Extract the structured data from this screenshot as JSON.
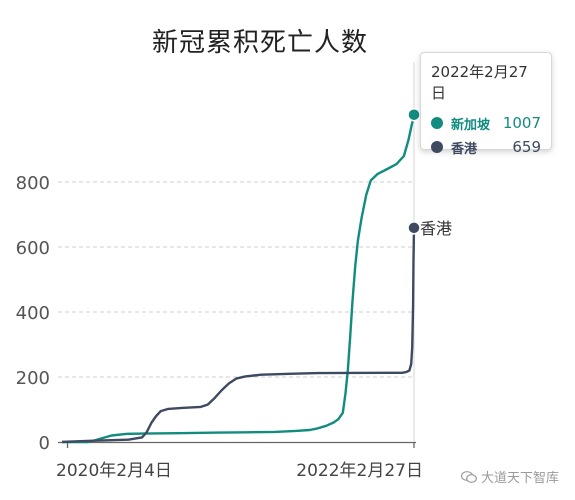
{
  "title": "新冠累积死亡人数",
  "colors": {
    "singapore": "#128c7e",
    "hongkong": "#3e4a5f",
    "grid": "#cfcfcf",
    "axis": "#555555"
  },
  "tooltip": {
    "date": "2022年2月27日",
    "rows": [
      {
        "name": "新加坡",
        "value": "1007",
        "color": "#128c7e"
      },
      {
        "name": "香港",
        "value": "659",
        "color": "#3e4a5f"
      }
    ]
  },
  "end_label": "香港",
  "watermark": "大道天下智库",
  "chart_data": {
    "type": "line",
    "title": "新冠累积死亡人数",
    "xlabel": "",
    "ylabel": "",
    "x_axis": {
      "start": "2020-01-23",
      "end": "2022-02-27",
      "ticks": [
        "2020-02-04",
        "2022-02-27"
      ],
      "tick_labels": [
        "2020年2月4日",
        "2022年2月27日"
      ]
    },
    "ylim": [
      0,
      1000
    ],
    "yticks": [
      0,
      200,
      400,
      600,
      800
    ],
    "grid": true,
    "legend": "tooltip top-right",
    "series": [
      {
        "name": "新加坡",
        "color": "#128c7e",
        "points": [
          [
            "2020-01-23",
            0
          ],
          [
            "2020-03-20",
            0
          ],
          [
            "2020-04-05",
            6
          ],
          [
            "2020-04-20",
            12
          ],
          [
            "2020-05-10",
            20
          ],
          [
            "2020-06-10",
            25
          ],
          [
            "2020-07-15",
            26
          ],
          [
            "2020-10-01",
            27
          ],
          [
            "2020-12-31",
            29
          ],
          [
            "2021-03-01",
            30
          ],
          [
            "2021-05-01",
            31
          ],
          [
            "2021-06-15",
            34
          ],
          [
            "2021-07-15",
            37
          ],
          [
            "2021-08-01",
            42
          ],
          [
            "2021-08-20",
            50
          ],
          [
            "2021-09-05",
            60
          ],
          [
            "2021-09-15",
            70
          ],
          [
            "2021-09-25",
            90
          ],
          [
            "2021-10-01",
            150
          ],
          [
            "2021-10-06",
            220
          ],
          [
            "2021-10-11",
            320
          ],
          [
            "2021-10-16",
            430
          ],
          [
            "2021-10-22",
            540
          ],
          [
            "2021-10-28",
            620
          ],
          [
            "2021-11-05",
            690
          ],
          [
            "2021-11-15",
            760
          ],
          [
            "2021-11-25",
            805
          ],
          [
            "2021-12-10",
            825
          ],
          [
            "2021-12-31",
            840
          ],
          [
            "2022-01-20",
            855
          ],
          [
            "2022-02-05",
            880
          ],
          [
            "2022-02-15",
            930
          ],
          [
            "2022-02-22",
            975
          ],
          [
            "2022-02-27",
            1007
          ]
        ]
      },
      {
        "name": "香港",
        "color": "#3e4a5f",
        "points": [
          [
            "2020-01-23",
            0
          ],
          [
            "2020-02-04",
            1
          ],
          [
            "2020-04-01",
            4
          ],
          [
            "2020-06-15",
            7
          ],
          [
            "2020-07-15",
            14
          ],
          [
            "2020-07-25",
            30
          ],
          [
            "2020-08-05",
            60
          ],
          [
            "2020-08-15",
            80
          ],
          [
            "2020-08-25",
            95
          ],
          [
            "2020-09-10",
            102
          ],
          [
            "2020-10-10",
            105
          ],
          [
            "2020-11-20",
            108
          ],
          [
            "2020-12-05",
            115
          ],
          [
            "2020-12-20",
            135
          ],
          [
            "2021-01-05",
            160
          ],
          [
            "2021-01-20",
            180
          ],
          [
            "2021-02-05",
            195
          ],
          [
            "2021-02-25",
            202
          ],
          [
            "2021-04-01",
            207
          ],
          [
            "2021-06-01",
            210
          ],
          [
            "2021-08-01",
            212
          ],
          [
            "2021-12-31",
            213
          ],
          [
            "2022-02-01",
            213
          ],
          [
            "2022-02-10",
            215
          ],
          [
            "2022-02-17",
            220
          ],
          [
            "2022-02-21",
            240
          ],
          [
            "2022-02-23",
            290
          ],
          [
            "2022-02-25",
            420
          ],
          [
            "2022-02-26",
            560
          ],
          [
            "2022-02-27",
            659
          ]
        ]
      }
    ]
  }
}
